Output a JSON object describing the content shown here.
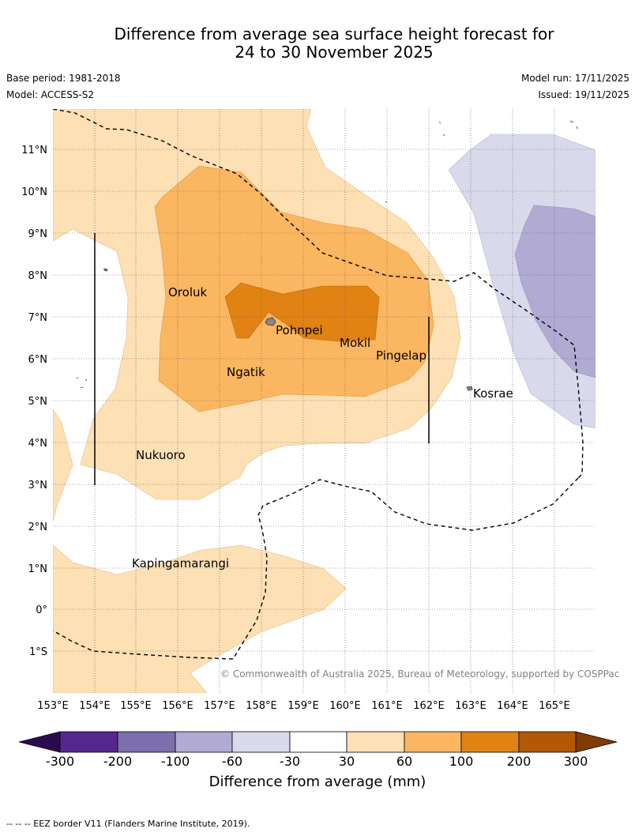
{
  "title_line1": "Difference from average sea surface height forecast for",
  "title_line2": "24 to 30 November 2025",
  "base_period": "Base period: 1981-2018",
  "model": "Model: ACCESS-S2",
  "model_run": "Model run: 17/11/2025",
  "issued": "Issued: 19/11/2025",
  "copyright": "© Commonwealth of Australia 2025, Bureau of Meteorology, supported by COSPPac",
  "colorbar_title": "Difference from average (mm)",
  "footer": "--  --  -- EEZ border V11 (Flanders Marine Institute, 2019).",
  "places": {
    "oroluk": "Oroluk",
    "pohnpei": "Pohnpei",
    "mokil": "Mokil",
    "pingelap": "Pingelap",
    "ngatik": "Ngatik",
    "kosrae": "Kosrae",
    "nukuoro": "Nukuoro",
    "kapingamarangi": "Kapingamarangi"
  },
  "axes": {
    "lon_labels": [
      "153°E",
      "154°E",
      "155°E",
      "156°E",
      "157°E",
      "158°E",
      "159°E",
      "160°E",
      "161°E",
      "162°E",
      "163°E",
      "164°E",
      "165°E"
    ],
    "lat_labels": [
      "11°N",
      "10°N",
      "9°N",
      "8°N",
      "7°N",
      "6°N",
      "5°N",
      "4°N",
      "3°N",
      "2°N",
      "1°N",
      "0°",
      "1°S"
    ]
  },
  "colorbar": {
    "ticks": [
      "-300",
      "-200",
      "-100",
      "-60",
      "-30",
      "30",
      "60",
      "100",
      "200",
      "300"
    ],
    "colors": {
      "below": "#2d0a4e",
      "c1": "#54278f",
      "c2": "#7d6fae",
      "c3": "#b1aad3",
      "c4": "#d9d9ec",
      "c5": "#ffffff",
      "c6": "#fde0b4",
      "c7": "#fbb661",
      "c8": "#e08214",
      "c9": "#b35806",
      "above": "#7f3b08"
    }
  }
}
